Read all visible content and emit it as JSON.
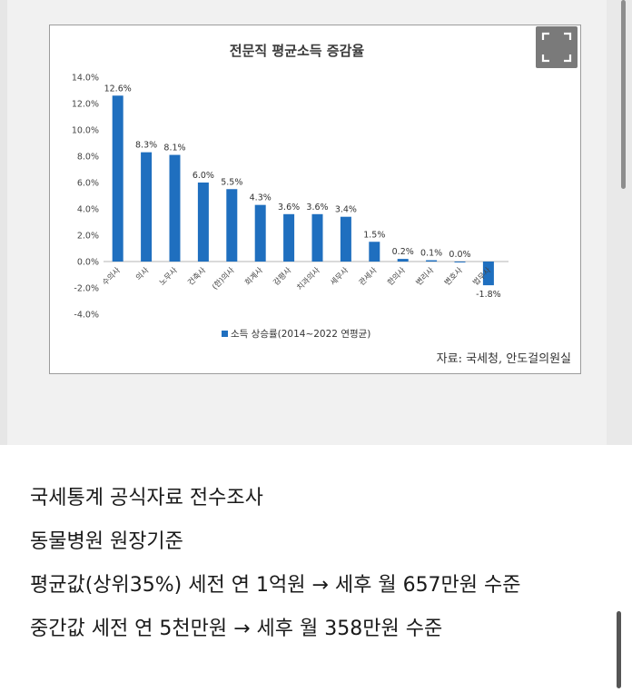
{
  "chart_data": {
    "type": "bar",
    "title": "전문직 평균소득 증감율",
    "categories": [
      "수의사",
      "의사",
      "노무사",
      "건축사",
      "(한)의사",
      "회계사",
      "감평사",
      "치과의사",
      "세무사",
      "관세사",
      "한의사",
      "변리사",
      "변호사",
      "법무사"
    ],
    "series": [
      {
        "name": "소득 상승률(2014~2022 연평균)",
        "values": [
          12.6,
          8.3,
          8.1,
          6.0,
          5.5,
          4.3,
          3.6,
          3.6,
          3.4,
          1.5,
          0.2,
          0.1,
          0.0,
          -1.8
        ]
      }
    ],
    "data_labels": [
      "12.6%",
      "8.3%",
      "8.1%",
      "6.0%",
      "5.5%",
      "4.3%",
      "3.6%",
      "3.6%",
      "3.4%",
      "1.5%",
      "0.2%",
      "0.1%",
      "0.0%",
      "-1.8%"
    ],
    "y_ticks": [
      "14.0%",
      "12.0%",
      "10.0%",
      "8.0%",
      "6.0%",
      "4.0%",
      "2.0%",
      "0.0%",
      "-2.0%",
      "-4.0%"
    ],
    "ylim": [
      -4,
      14
    ],
    "xlabel": "",
    "ylabel": "",
    "legend_position": "bottom",
    "grid": false,
    "bar_color": "#1f6fbf",
    "source": "자료: 국세청, 안도걸의원실"
  },
  "controls": {
    "expand_icon": "expand-icon"
  },
  "text_lines": [
    "국세통계 공식자료 전수조사",
    "동물병원 원장기준",
    "평균값(상위35%) 세전 연 1억원 → 세후 월 657만원 수준",
    "중간값 세전 연 5천만원 → 세후 월 358만원 수준"
  ]
}
